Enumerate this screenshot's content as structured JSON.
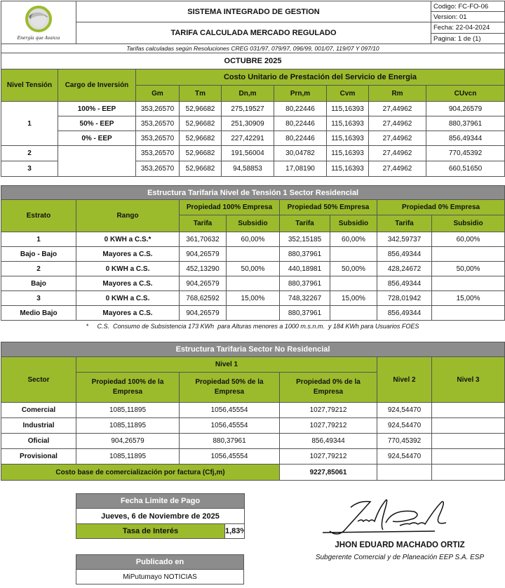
{
  "header": {
    "logo_text": "EMPRESA DE ENERGIA DEL PUTUMAYO",
    "logo_slogan": "Energía que Avanza",
    "system_title": "SISTEMA INTEGRADO DE GESTION",
    "doc_title": "TARIFA CALCULADA MERCADO REGULADO",
    "codigo": "Codigo:  FC-FO-06",
    "version": "Version: 01",
    "fecha": "Fecha:   22-04-2024",
    "pagina": "Pagina:   1 de (1)",
    "resoluciones": "Tarifas calculadas según Resoluciones CREG 031/97, 079/97, 096/99, 001/07, 119/07 Y 097/10",
    "period": "OCTUBRE 2025"
  },
  "cu_table": {
    "col_nivel": "Nivel Tensión",
    "col_cargo": "Cargo de Inversión",
    "group_title": "Costo Unitario de Prestación del Servicio de Energia",
    "columns": [
      "Gm",
      "Tm",
      "Dn,m",
      "Prn,m",
      "Cvm",
      "Rm",
      "CUvcn"
    ],
    "rows": [
      {
        "nivel": "1",
        "cargo": "100% - EEP",
        "values": [
          "353,26570",
          "52,96682",
          "275,19527",
          "80,22446",
          "115,16393",
          "27,44962",
          "904,26579"
        ]
      },
      {
        "nivel": "",
        "cargo": "50% - EEP",
        "values": [
          "353,26570",
          "52,96682",
          "251,30909",
          "80,22446",
          "115,16393",
          "27,44962",
          "880,37961"
        ]
      },
      {
        "nivel": "",
        "cargo": "0% - EEP",
        "values": [
          "353,26570",
          "52,96682",
          "227,42291",
          "80,22446",
          "115,16393",
          "27,44962",
          "856,49344"
        ]
      },
      {
        "nivel": "2",
        "cargo": "",
        "values": [
          "353,26570",
          "52,96682",
          "191,56004",
          "30,04782",
          "115,16393",
          "27,44962",
          "770,45392"
        ]
      },
      {
        "nivel": "3",
        "cargo": "",
        "values": [
          "353,26570",
          "52,96682",
          "94,58853",
          "17,08190",
          "115,16393",
          "27,44962",
          "660,51650"
        ]
      }
    ]
  },
  "residencial": {
    "title": "Estructura Tarifaria Nivel de Tensión 1 Sector Residencial",
    "col_estrato": "Estrato",
    "col_rango": "Rango",
    "groups": [
      "Propiedad 100% Empresa",
      "Propiedad 50% Empresa",
      "Propiedad 0% Empresa"
    ],
    "sub_tarifa": "Tarifa",
    "sub_subsidio": "Subsidio",
    "rows": [
      {
        "estrato": "1",
        "rango": "0 KWH a C.S.*",
        "values": [
          "361,70632",
          "60,00%",
          "352,15185",
          "60,00%",
          "342,59737",
          "60,00%"
        ]
      },
      {
        "estrato": "Bajo - Bajo",
        "rango": "Mayores a C.S.",
        "values": [
          "904,26579",
          "",
          "880,37961",
          "",
          "856,49344",
          ""
        ]
      },
      {
        "estrato": "2",
        "rango": "0 KWH a C.S.",
        "values": [
          "452,13290",
          "50,00%",
          "440,18981",
          "50,00%",
          "428,24672",
          "50,00%"
        ]
      },
      {
        "estrato": "Bajo",
        "rango": "Mayores a C.S.",
        "values": [
          "904,26579",
          "",
          "880,37961",
          "",
          "856,49344",
          ""
        ]
      },
      {
        "estrato": "3",
        "rango": "0 KWH a C.S.",
        "values": [
          "768,62592",
          "15,00%",
          "748,32267",
          "15,00%",
          "728,01942",
          "15,00%"
        ]
      },
      {
        "estrato": "Medio Bajo",
        "rango": "Mayores a C.S.",
        "values": [
          "904,26579",
          "",
          "880,37961",
          "",
          "856,49344",
          ""
        ]
      }
    ],
    "footnote": "*     C.S.  Consumo de Subsistencia 173 KWh  para Alturas menores a 1000 m.s.n.m.  y 184 KWh para Usuarios FOES"
  },
  "no_residencial": {
    "title": "Estructura Tarifaria Sector No Residencial",
    "col_sector": "Sector",
    "nivel1": "Nivel 1",
    "nivel2": "Nivel 2",
    "nivel3": "Nivel 3",
    "subcols": [
      "Propiedad 100% de la Empresa",
      "Propiedad 50% de la Empresa",
      "Propiedad 0% de la Empresa"
    ],
    "rows": [
      {
        "sector": "Comercial",
        "values": [
          "1085,11895",
          "1056,45554",
          "1027,79212",
          "924,54470",
          ""
        ]
      },
      {
        "sector": "Industrial",
        "values": [
          "1085,11895",
          "1056,45554",
          "1027,79212",
          "924,54470",
          ""
        ]
      },
      {
        "sector": "Oficial",
        "values": [
          "904,26579",
          "880,37961",
          "856,49344",
          "770,45392",
          ""
        ]
      },
      {
        "sector": "Provisional",
        "values": [
          "1085,11895",
          "1056,45554",
          "1027,79212",
          "924,54470",
          ""
        ]
      }
    ],
    "cfj_label": "Costo base de comercialización por factura (Cfj,m)",
    "cfj_value": "9227,85061"
  },
  "pago": {
    "title": "Fecha Limite de Pago",
    "date": "Jueves, 6 de Noviembre de 2025",
    "tasa_label": "Tasa de Interés",
    "tasa_value": "1,83%"
  },
  "publicado": {
    "title": "Publicado en",
    "value": "MiPutumayo NOTICIAS"
  },
  "firma": {
    "name": "JHON EDUARD MACHADO ORTIZ",
    "role": "Subgerente Comercial y de Planeación EEP S.A. ESP"
  },
  "colors": {
    "green": "#9cbb2c",
    "gray": "#8c8c8c"
  }
}
